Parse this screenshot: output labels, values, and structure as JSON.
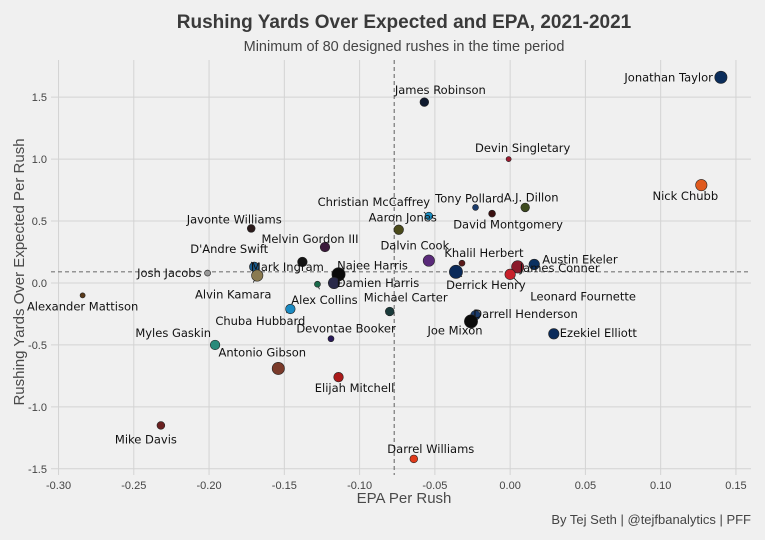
{
  "chart_data": {
    "type": "scatter",
    "title": "Rushing Yards Over Expected and EPA, 2021-2021",
    "subtitle": "Minimum of 80 designed rushes in the time period",
    "xlabel": "EPA Per Rush",
    "ylabel": "Rushing Yards Over Expected Per Rush",
    "caption": "By Tej Seth | @tejfbanalytics | PFF",
    "xlim": [
      -0.305,
      0.16
    ],
    "ylim": [
      -1.55,
      1.8
    ],
    "x_ticks": [
      -0.3,
      -0.25,
      -0.2,
      -0.15,
      -0.1,
      -0.05,
      0.0,
      0.05,
      0.1,
      0.15
    ],
    "x_tick_labels": [
      "-0.30",
      "-0.25",
      "-0.20",
      "-0.15",
      "-0.10",
      "-0.05",
      "0.00",
      "0.05",
      "0.10",
      "0.15"
    ],
    "y_ticks": [
      -1.5,
      -1.0,
      -0.5,
      0.0,
      0.5,
      1.0,
      1.5
    ],
    "y_tick_labels": [
      "-1.5",
      "-1.0",
      "-0.5",
      "0.0",
      "0.5",
      "1.0",
      "1.5"
    ],
    "grid": true,
    "reference_lines": {
      "x_mean": -0.077,
      "y_mean": 0.09
    },
    "points": [
      {
        "name": "Jonathan Taylor",
        "x": 0.14,
        "y": 1.66,
        "color": "#0b2d5b",
        "size": 5.5
      },
      {
        "name": "James Robinson",
        "x": -0.057,
        "y": 1.46,
        "color": "#0f1a2e",
        "size": 3.5
      },
      {
        "name": "Devin Singletary",
        "x": -0.001,
        "y": 1.0,
        "color": "#9b1b30",
        "size": 1.5
      },
      {
        "name": "Nick Chubb",
        "x": 0.127,
        "y": 0.79,
        "color": "#e05a1e",
        "size": 5
      },
      {
        "name": "Tony Pollard",
        "x": -0.023,
        "y": 0.61,
        "color": "#1a3a6b",
        "size": 2
      },
      {
        "name": "A.J. Dillon",
        "x": 0.01,
        "y": 0.61,
        "color": "#3d4a1f",
        "size": 3.5
      },
      {
        "name": "David Montgomery",
        "x": -0.012,
        "y": 0.56,
        "color": "#3a1010",
        "size": 2.5
      },
      {
        "name": "Christian McCaffrey",
        "x": -0.054,
        "y": 0.54,
        "color": "#1b8ec2",
        "size": 3
      },
      {
        "name": "Aaron Jones",
        "x": -0.074,
        "y": 0.43,
        "color": "#4a4a1a",
        "size": 4
      },
      {
        "name": "Javonte Williams",
        "x": -0.172,
        "y": 0.44,
        "color": "#2a1a1a",
        "size": 3
      },
      {
        "name": "Melvin Gordon III",
        "x": -0.123,
        "y": 0.29,
        "color": "#3a1a3a",
        "size": 4
      },
      {
        "name": "Dalvin Cook",
        "x": -0.054,
        "y": 0.18,
        "color": "#5a2a7a",
        "size": 5
      },
      {
        "name": "Khalil Herbert",
        "x": -0.032,
        "y": 0.16,
        "color": "#5a1a1a",
        "size": 2
      },
      {
        "name": "Austin Ekeler",
        "x": 0.016,
        "y": 0.15,
        "color": "#0a3060",
        "size": 4.5
      },
      {
        "name": "D'Andre Swift",
        "x": -0.17,
        "y": 0.13,
        "color": "#1a5a8a",
        "size": 4
      },
      {
        "name": "Mark Ingram",
        "x": -0.138,
        "y": 0.17,
        "color": "#141414",
        "size": 4
      },
      {
        "name": "Najee Harris",
        "x": -0.114,
        "y": 0.07,
        "color": "#0a0a0a",
        "size": 6
      },
      {
        "name": "Josh Jacobs",
        "x": -0.201,
        "y": 0.08,
        "color": "#9a9a9a",
        "size": 2
      },
      {
        "name": "Alvin Kamara",
        "x": -0.168,
        "y": 0.06,
        "color": "#8a7a50",
        "size": 5
      },
      {
        "name": "Damien Harris",
        "x": -0.117,
        "y": 0.0,
        "color": "#2a2a4a",
        "size": 5
      },
      {
        "name": "Derrick Henry",
        "x": -0.036,
        "y": 0.09,
        "color": "#0a2a5a",
        "size": 6
      },
      {
        "name": "James Conner",
        "x": 0.005,
        "y": 0.13,
        "color": "#8a1a2a",
        "size": 5.5
      },
      {
        "name": "Leonard Fournette",
        "x": 0.0,
        "y": 0.07,
        "color": "#c8202a",
        "size": 4.5
      },
      {
        "name": "Alex Collins",
        "x": -0.128,
        "y": -0.01,
        "color": "#1a6a4a",
        "size": 2
      },
      {
        "name": "Alexander Mattison",
        "x": -0.284,
        "y": -0.1,
        "color": "#5a3a1a",
        "size": 1.5
      },
      {
        "name": "Chuba Hubbard",
        "x": -0.146,
        "y": -0.21,
        "color": "#1a8ac2",
        "size": 4
      },
      {
        "name": "Michael Carter",
        "x": -0.08,
        "y": -0.23,
        "color": "#1a3a3a",
        "size": 3.5
      },
      {
        "name": "Darrell Henderson",
        "x": -0.023,
        "y": -0.26,
        "color": "#1a3a6a",
        "size": 4
      },
      {
        "name": "Joe Mixon",
        "x": -0.026,
        "y": -0.31,
        "color": "#0a0a0a",
        "size": 6
      },
      {
        "name": "Ezekiel Elliott",
        "x": 0.029,
        "y": -0.41,
        "color": "#0a2a5a",
        "size": 4.5
      },
      {
        "name": "Myles Gaskin",
        "x": -0.196,
        "y": -0.5,
        "color": "#2a8a7a",
        "size": 4
      },
      {
        "name": "Devontae Booker",
        "x": -0.119,
        "y": -0.45,
        "color": "#2a1a5a",
        "size": 2
      },
      {
        "name": "Antonio Gibson",
        "x": -0.154,
        "y": -0.69,
        "color": "#7a3a2a",
        "size": 5.5
      },
      {
        "name": "Elijah Mitchell",
        "x": -0.114,
        "y": -0.76,
        "color": "#aa1a1a",
        "size": 4
      },
      {
        "name": "Mike Davis",
        "x": -0.232,
        "y": -1.15,
        "color": "#6a2020",
        "size": 3
      },
      {
        "name": "Darrel Williams",
        "x": -0.064,
        "y": -1.42,
        "color": "#e03a1a",
        "size": 3
      }
    ]
  }
}
